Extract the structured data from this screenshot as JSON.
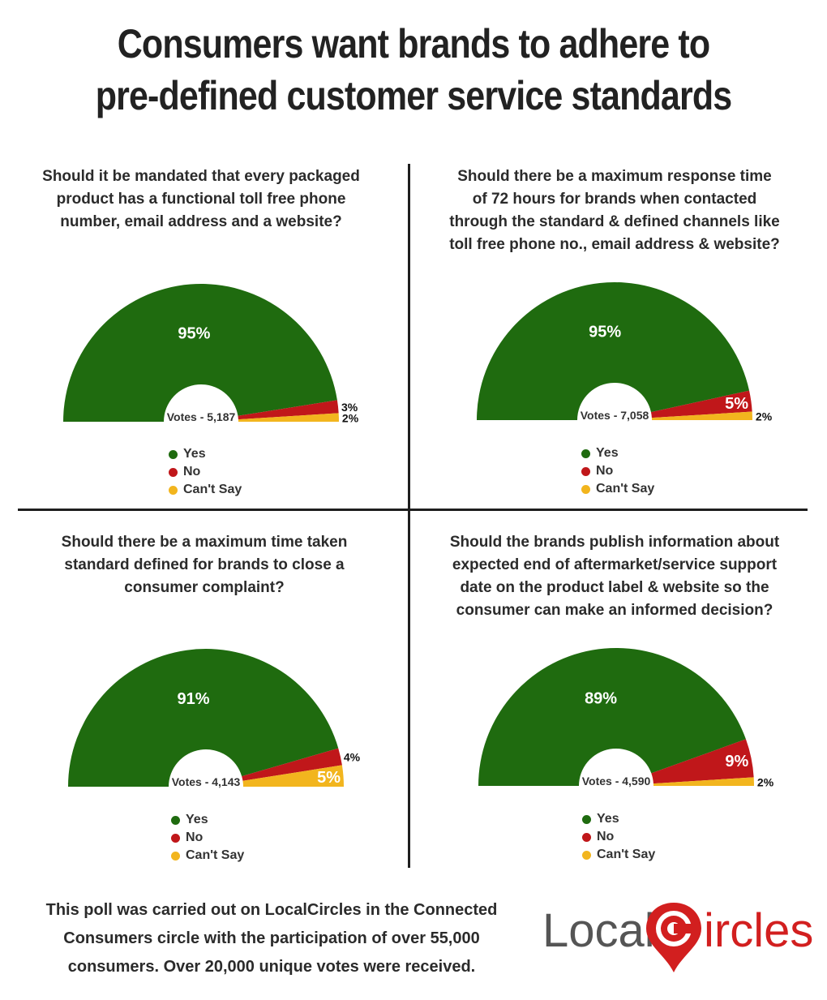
{
  "title": {
    "line1": "Consumers want brands to adhere to",
    "line2": "pre-defined customer service standards"
  },
  "legend_labels": [
    "Yes",
    "No",
    "Can't Say"
  ],
  "colors": {
    "yes": "#1f6b0f",
    "no": "#c0171a",
    "cant_say": "#f2b51e",
    "divider": "#1e1e1e"
  },
  "chart_data": [
    {
      "type": "pie",
      "subtype": "semicircle-donut",
      "question_lines": [
        "Should it be mandated that every packaged",
        "product has a functional toll free phone",
        "number, email address and a website?"
      ],
      "categories": [
        "Yes",
        "No",
        "Can't Say"
      ],
      "values": [
        95,
        3,
        2
      ],
      "labels": [
        "95%",
        "3%",
        "2%"
      ],
      "votes": "Votes - 5,187"
    },
    {
      "type": "pie",
      "subtype": "semicircle-donut",
      "question_lines": [
        "Should there be a maximum response time",
        "of 72 hours for brands when contacted",
        "through the standard & defined channels like",
        "toll free phone no., email address & website?"
      ],
      "categories": [
        "Yes",
        "No",
        "Can't Say"
      ],
      "values": [
        95,
        5,
        2
      ],
      "labels": [
        "95%",
        "5%",
        "2%"
      ],
      "votes": "Votes - 7,058"
    },
    {
      "type": "pie",
      "subtype": "semicircle-donut",
      "question_lines": [
        "Should there be a maximum time taken",
        "standard defined for brands to close a",
        "consumer complaint?"
      ],
      "categories": [
        "Yes",
        "No",
        "Can't Say"
      ],
      "values": [
        91,
        4,
        5
      ],
      "labels": [
        "91%",
        "4%",
        "5%"
      ],
      "votes": "Votes - 4,143"
    },
    {
      "type": "pie",
      "subtype": "semicircle-donut",
      "question_lines": [
        "Should the brands publish information about",
        "expected end of aftermarket/service support",
        "date on the product label & website so the",
        "consumer can make an informed decision?"
      ],
      "categories": [
        "Yes",
        "No",
        "Can't Say"
      ],
      "values": [
        89,
        9,
        2
      ],
      "labels": [
        "89%",
        "9%",
        "2%"
      ],
      "votes": "Votes - 4,590"
    }
  ],
  "footer": {
    "line1": "This poll was carried out on LocalCircles in the Connected",
    "line2": "Consumers circle with the participation of over 55,000",
    "line3": "consumers. Over 20,000 unique votes were received."
  },
  "logo": {
    "word1": "Local",
    "word2": "ircles"
  }
}
